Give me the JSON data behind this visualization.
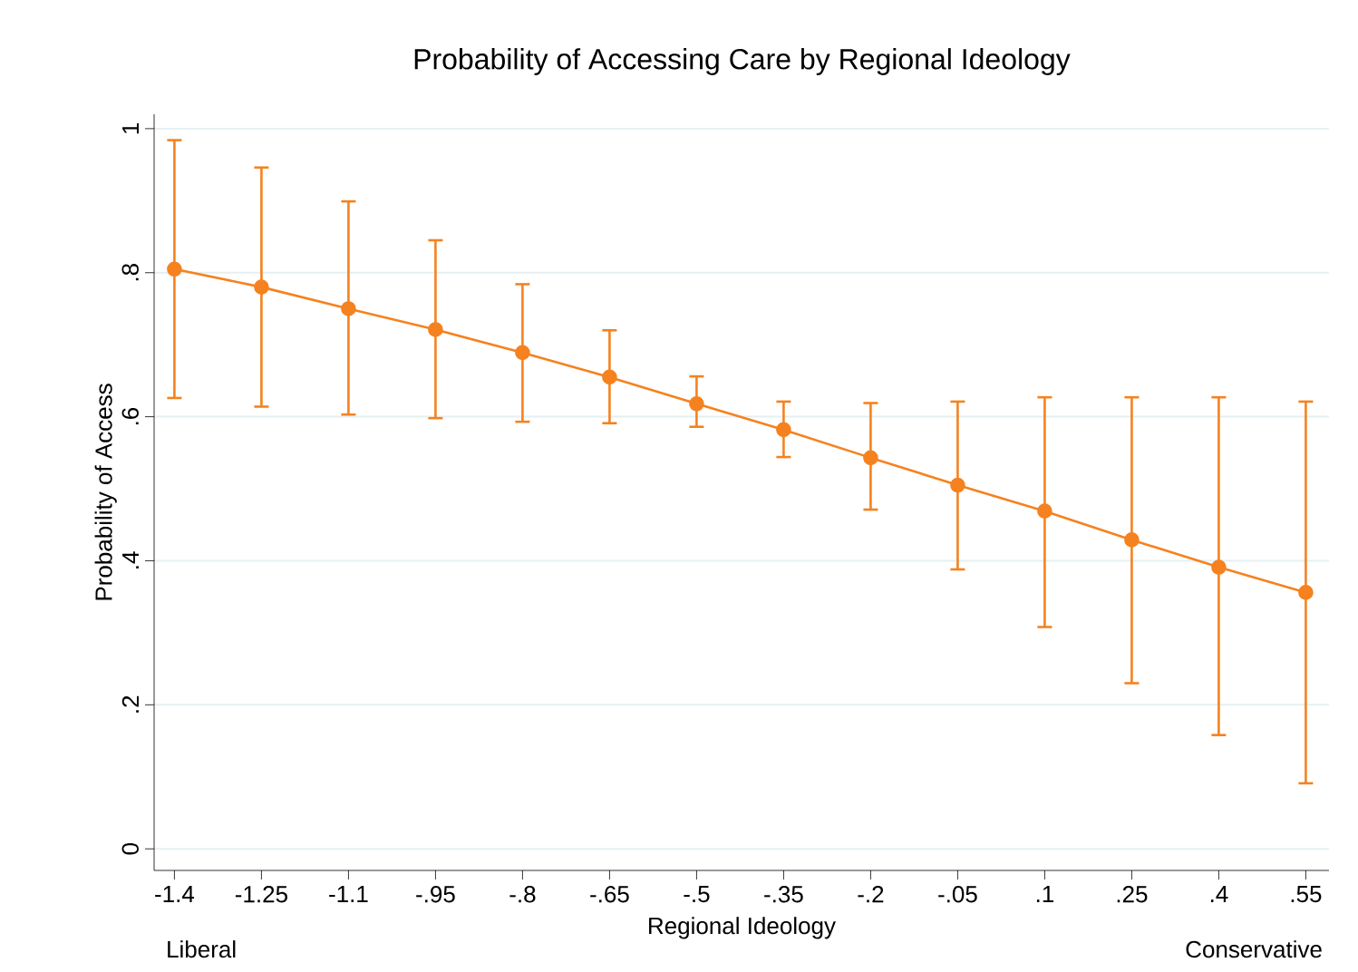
{
  "chart_data": {
    "type": "line",
    "title": "Probability of Accessing Care by Regional Ideology",
    "xlabel": "Regional Ideology",
    "ylabel": "Probability of Access",
    "annotations": [
      "Liberal",
      "Conservative"
    ],
    "x": [
      -1.4,
      -1.25,
      -1.1,
      -0.95,
      -0.8,
      -0.65,
      -0.5,
      -0.35,
      -0.2,
      -0.05,
      0.1,
      0.25,
      0.4,
      0.55
    ],
    "series": [
      {
        "color": "#f5821f",
        "values": [
          0.805,
          0.78,
          0.75,
          0.721,
          0.689,
          0.655,
          0.618,
          0.582,
          0.543,
          0.505,
          0.469,
          0.429,
          0.391,
          0.356
        ],
        "errors": [
          [
            0.626,
            0.984
          ],
          [
            0.614,
            0.946
          ],
          [
            0.603,
            0.899
          ],
          [
            0.598,
            0.845
          ],
          [
            0.593,
            0.784
          ],
          [
            0.591,
            0.72
          ],
          [
            0.586,
            0.656
          ],
          [
            0.544,
            0.621
          ],
          [
            0.471,
            0.619
          ],
          [
            0.388,
            0.621
          ],
          [
            0.308,
            0.627
          ],
          [
            0.23,
            0.627
          ],
          [
            0.158,
            0.627
          ],
          [
            0.091,
            0.621
          ]
        ]
      }
    ],
    "xlim": [
      -1.435,
      0.59
    ],
    "ylim": [
      -0.03,
      1.02
    ],
    "xticks": [
      -1.4,
      -1.25,
      -1.1,
      {
        "value": -0.95,
        "label": "-.95"
      },
      {
        "value": -0.8,
        "label": "-.8"
      },
      {
        "value": -0.65,
        "label": "-.65"
      },
      {
        "value": -0.5,
        "label": "-.5"
      },
      {
        "value": -0.35,
        "label": "-.35"
      },
      {
        "value": -0.2,
        "label": "-.2"
      },
      {
        "value": -0.05,
        "label": "-.05"
      },
      {
        "value": 0.1,
        "label": ".1"
      },
      {
        "value": 0.25,
        "label": ".25"
      },
      {
        "value": 0.4,
        "label": ".4"
      },
      {
        "value": 0.55,
        "label": ".55"
      }
    ],
    "yticks": [
      0,
      {
        "value": 0.2,
        "label": ".2"
      },
      {
        "value": 0.4,
        "label": ".4"
      },
      {
        "value": 0.6,
        "label": ".6"
      },
      {
        "value": 0.8,
        "label": ".8"
      },
      1
    ],
    "grid": "y",
    "marker": "circle",
    "line_style": "solid"
  }
}
